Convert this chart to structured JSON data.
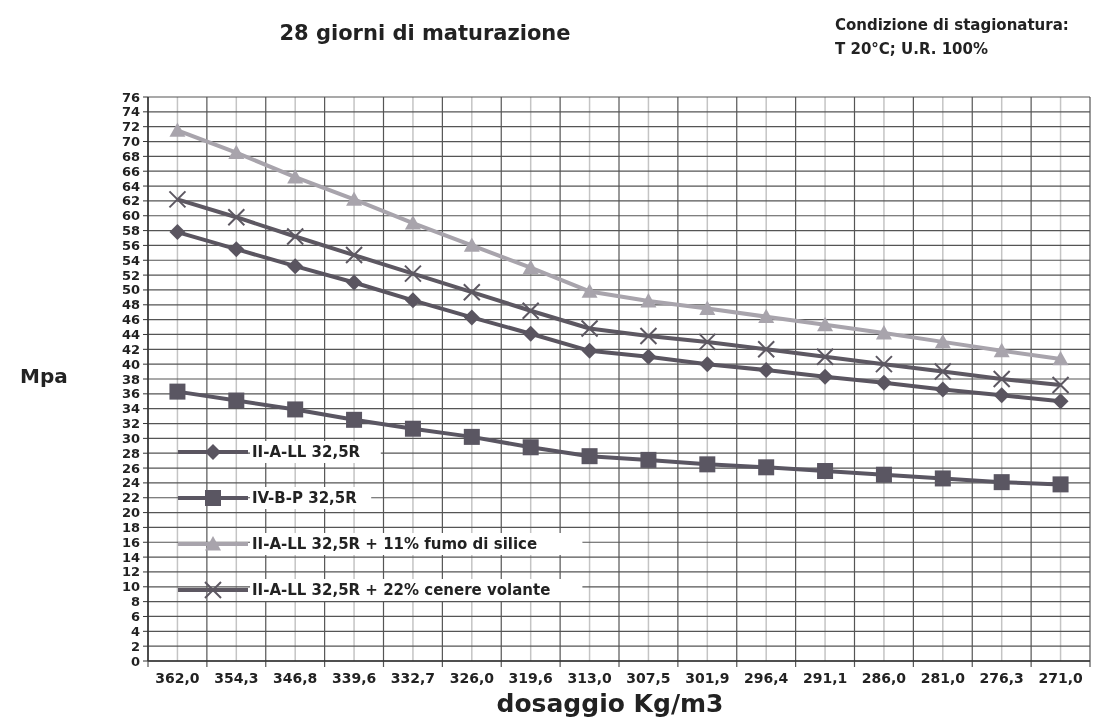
{
  "chart_data": {
    "type": "line",
    "title": "28 giorni di maturazione",
    "xlabel": "dosaggio Kg/m3",
    "ylabel": "Mpa",
    "annotations": [
      "Condizione di stagionatura:\nT 20°C;  U.R. 100%"
    ],
    "categories": [
      "362,0",
      "354,3",
      "346,8",
      "339,6",
      "332,7",
      "326,0",
      "319,6",
      "313,0",
      "307,5",
      "301,9",
      "296,4",
      "291,1",
      "286,0",
      "281,0",
      "276,3",
      "271,0"
    ],
    "series": [
      {
        "name": "II-A-LL 32,5R",
        "color": "#5a5560",
        "marker": "diamond",
        "values": [
          57.8,
          55.5,
          53.2,
          51.0,
          48.6,
          46.3,
          44.1,
          41.8,
          41.0,
          40.0,
          39.2,
          38.3,
          37.5,
          36.6,
          35.8,
          35.0
        ]
      },
      {
        "name": "IV-B-P 32,5R",
        "color": "#5a5662",
        "marker": "square",
        "values": [
          36.3,
          35.1,
          33.9,
          32.5,
          31.3,
          30.2,
          28.8,
          27.6,
          27.1,
          26.5,
          26.1,
          25.6,
          25.1,
          24.6,
          24.1,
          23.8
        ]
      },
      {
        "name": "II-A-LL 32,5R + 11% fumo di silice",
        "color": "#a8a4ac",
        "marker": "triangle",
        "values": [
          71.5,
          68.5,
          65.2,
          62.2,
          59.0,
          56.0,
          53.0,
          49.8,
          48.5,
          47.5,
          46.4,
          45.3,
          44.2,
          43.0,
          41.8,
          40.7
        ]
      },
      {
        "name": "II-A-LL 32,5R + 22% cenere volante",
        "color": "#5d5862",
        "marker": "cross",
        "values": [
          62.2,
          59.8,
          57.2,
          54.7,
          52.2,
          49.7,
          47.2,
          44.8,
          43.8,
          43.0,
          42.0,
          41.0,
          40.0,
          39.0,
          38.0,
          37.2
        ]
      }
    ],
    "ylim": [
      0,
      76
    ],
    "yticks": [
      0,
      2,
      4,
      6,
      8,
      10,
      12,
      14,
      16,
      18,
      20,
      22,
      24,
      26,
      28,
      30,
      32,
      34,
      36,
      38,
      40,
      42,
      44,
      46,
      48,
      50,
      52,
      54,
      56,
      58,
      60,
      62,
      64,
      66,
      68,
      70,
      72,
      74,
      76
    ],
    "grid": true,
    "legend": "bottom left",
    "line_style": "solid"
  }
}
